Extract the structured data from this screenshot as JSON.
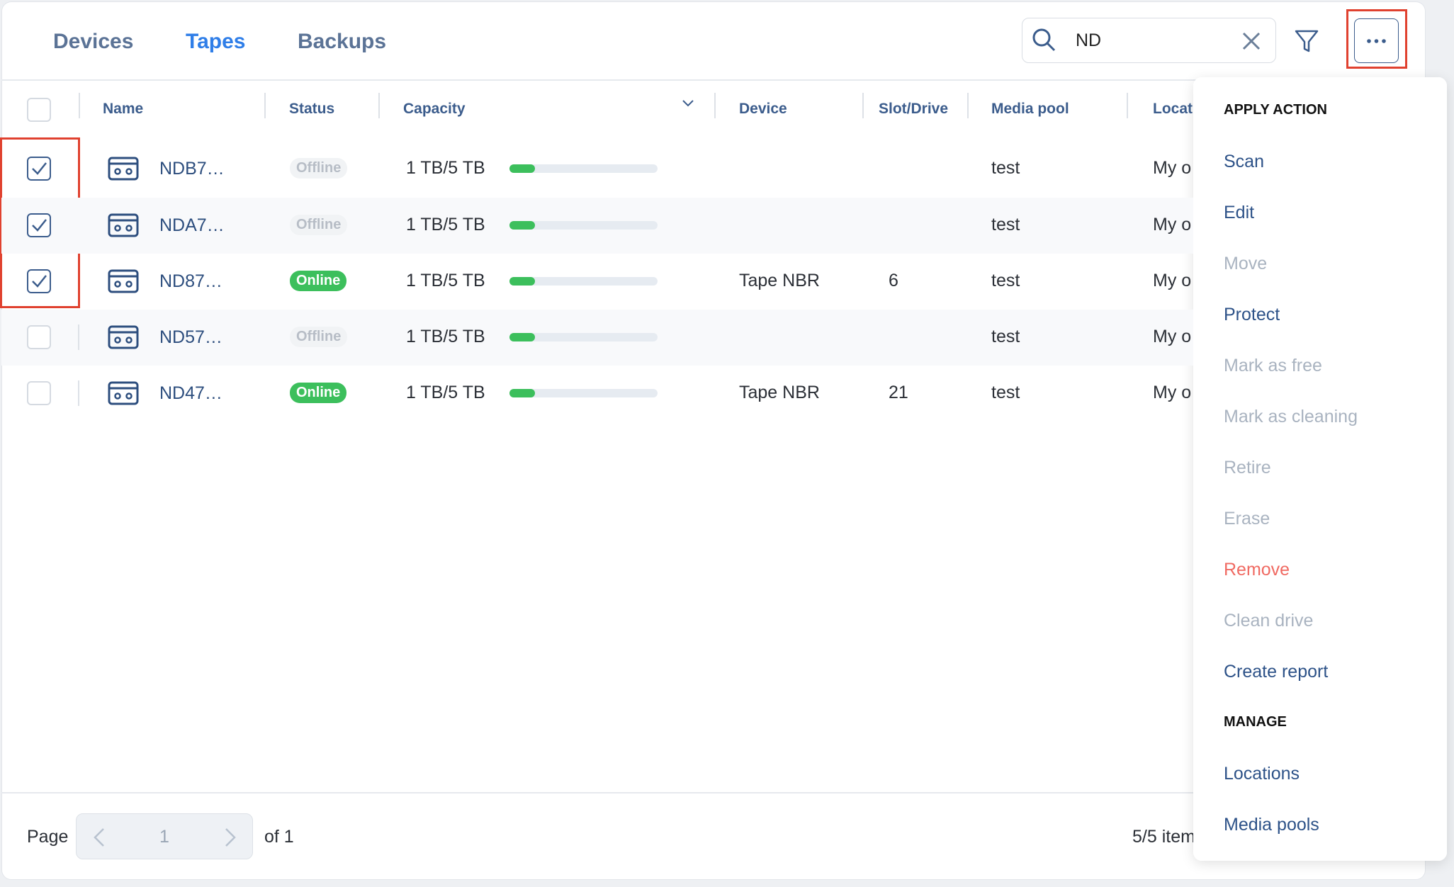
{
  "tabs": [
    {
      "label": "Devices",
      "active": false
    },
    {
      "label": "Tapes",
      "active": true
    },
    {
      "label": "Backups",
      "active": false
    }
  ],
  "search": {
    "value": "ND"
  },
  "table": {
    "columns": [
      "Name",
      "Status",
      "Capacity",
      "Device",
      "Slot/Drive",
      "Media pool",
      "Locat"
    ],
    "rows": [
      {
        "checked": true,
        "name": "NDB7…",
        "status": "Offline",
        "capacity": "1 TB/5 TB",
        "device": "",
        "slot": "",
        "pool": "test",
        "location": "My o"
      },
      {
        "checked": true,
        "name": "NDA7…",
        "status": "Offline",
        "capacity": "1 TB/5 TB",
        "device": "",
        "slot": "",
        "pool": "test",
        "location": "My o"
      },
      {
        "checked": true,
        "name": "ND87…",
        "status": "Online",
        "capacity": "1 TB/5 TB",
        "device": "Tape NBR",
        "slot": "6",
        "pool": "test",
        "location": "My o"
      },
      {
        "checked": false,
        "name": "ND57…",
        "status": "Offline",
        "capacity": "1 TB/5 TB",
        "device": "",
        "slot": "",
        "pool": "test",
        "location": "My o"
      },
      {
        "checked": false,
        "name": "ND47…",
        "status": "Online",
        "capacity": "1 TB/5 TB",
        "device": "Tape NBR",
        "slot": "21",
        "pool": "test",
        "location": "My o"
      }
    ]
  },
  "pagination": {
    "page_label": "Page",
    "page": "1",
    "of": "of 1",
    "items": "5/5 item"
  },
  "menu": {
    "sections": [
      {
        "title": "APPLY ACTION",
        "items": [
          {
            "label": "Scan",
            "state": "enabled"
          },
          {
            "label": "Edit",
            "state": "enabled"
          },
          {
            "label": "Move",
            "state": "disabled"
          },
          {
            "label": "Protect",
            "state": "enabled"
          },
          {
            "label": "Mark as free",
            "state": "disabled"
          },
          {
            "label": "Mark as cleaning",
            "state": "disabled"
          },
          {
            "label": "Retire",
            "state": "disabled"
          },
          {
            "label": "Erase",
            "state": "disabled"
          },
          {
            "label": "Remove",
            "state": "danger"
          },
          {
            "label": "Clean drive",
            "state": "disabled"
          },
          {
            "label": "Create report",
            "state": "enabled"
          }
        ]
      },
      {
        "title": "MANAGE",
        "items": [
          {
            "label": "Locations",
            "state": "enabled"
          },
          {
            "label": "Media pools",
            "state": "enabled"
          }
        ]
      }
    ]
  }
}
